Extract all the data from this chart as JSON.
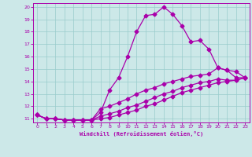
{
  "title": "",
  "xlabel": "Windchill (Refroidissement éolien,°C)",
  "bg_color": "#cce8e8",
  "line_color": "#aa00aa",
  "grid_color": "#99cccc",
  "xlim": [
    -0.5,
    23.5
  ],
  "ylim": [
    10.7,
    20.3
  ],
  "xticks": [
    0,
    1,
    2,
    3,
    4,
    5,
    6,
    7,
    8,
    9,
    10,
    11,
    12,
    13,
    14,
    15,
    16,
    17,
    18,
    19,
    20,
    21,
    22,
    23
  ],
  "yticks": [
    11,
    12,
    13,
    14,
    15,
    16,
    17,
    18,
    19,
    20
  ],
  "line1_x": [
    0,
    1,
    2,
    3,
    4,
    5,
    6,
    7,
    8,
    9,
    10,
    11,
    12,
    13,
    14,
    15,
    16,
    17,
    18,
    19,
    20,
    21,
    22,
    23
  ],
  "line1_y": [
    11.3,
    11.0,
    11.0,
    10.9,
    10.9,
    10.9,
    10.9,
    11.5,
    13.3,
    14.3,
    16.0,
    18.0,
    19.3,
    19.4,
    20.0,
    19.4,
    18.5,
    17.2,
    17.3,
    16.6,
    15.1,
    14.9,
    14.3,
    14.3
  ],
  "line2_x": [
    0,
    1,
    2,
    3,
    4,
    5,
    6,
    7,
    8,
    9,
    10,
    11,
    12,
    13,
    14,
    15,
    16,
    17,
    18,
    19,
    20,
    21,
    22,
    23
  ],
  "line2_y": [
    11.3,
    11.0,
    11.0,
    10.9,
    10.9,
    10.9,
    10.9,
    11.8,
    12.0,
    12.3,
    12.6,
    13.0,
    13.3,
    13.5,
    13.8,
    14.0,
    14.2,
    14.4,
    14.5,
    14.6,
    15.1,
    14.9,
    14.8,
    14.3
  ],
  "line3_x": [
    0,
    1,
    2,
    3,
    4,
    5,
    6,
    7,
    8,
    9,
    10,
    11,
    12,
    13,
    14,
    15,
    16,
    17,
    18,
    19,
    20,
    21,
    22,
    23
  ],
  "line3_y": [
    11.3,
    11.0,
    11.0,
    10.9,
    10.9,
    10.9,
    10.9,
    11.2,
    11.4,
    11.6,
    11.9,
    12.1,
    12.4,
    12.7,
    13.0,
    13.2,
    13.5,
    13.7,
    13.9,
    14.0,
    14.2,
    14.1,
    14.1,
    14.3
  ],
  "line4_x": [
    0,
    1,
    2,
    3,
    4,
    5,
    6,
    7,
    8,
    9,
    10,
    11,
    12,
    13,
    14,
    15,
    16,
    17,
    18,
    19,
    20,
    21,
    22,
    23
  ],
  "line4_y": [
    11.3,
    11.0,
    11.0,
    10.9,
    10.9,
    10.9,
    10.9,
    11.0,
    11.1,
    11.3,
    11.5,
    11.7,
    12.0,
    12.2,
    12.5,
    12.8,
    13.1,
    13.3,
    13.5,
    13.7,
    13.9,
    14.0,
    14.1,
    14.3
  ]
}
